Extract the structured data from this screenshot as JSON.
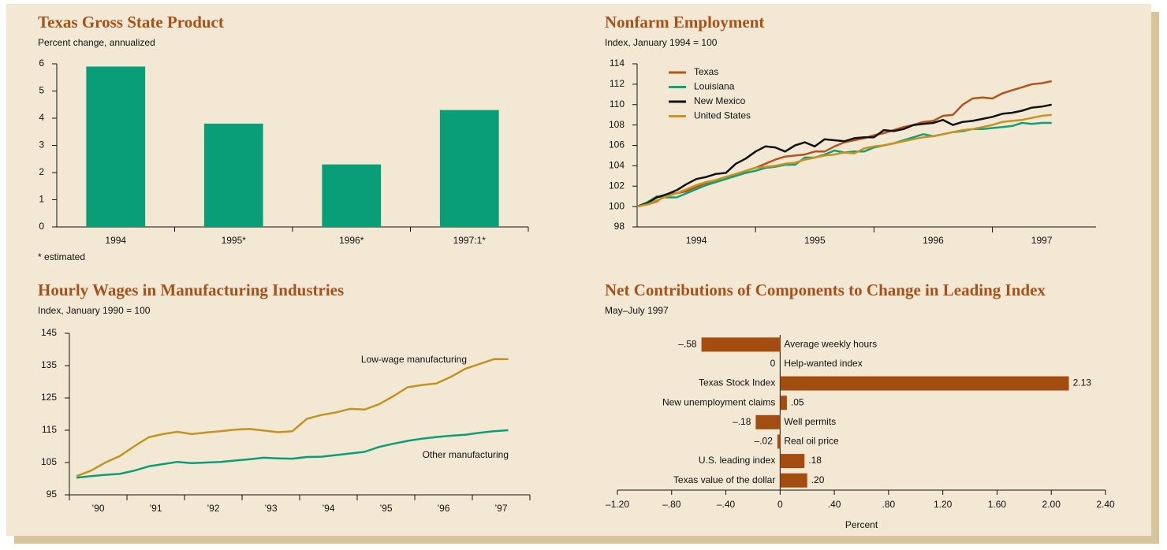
{
  "chart_data": [
    {
      "type": "bar",
      "title": "Texas Gross State Product",
      "subtitle": "Percent change, annualized",
      "categories": [
        "1994",
        "1995*",
        "1996*",
        "1997:1*"
      ],
      "values": [
        5.9,
        3.8,
        2.3,
        4.3
      ],
      "color": "#0a9e78",
      "ylim": [
        0,
        6
      ],
      "yticks": [
        0,
        1,
        2,
        3,
        4,
        5,
        6
      ],
      "note": "* estimated"
    },
    {
      "type": "line",
      "title": "Nonfarm Employment",
      "subtitle": "Index, January 1994 = 100",
      "categories": [
        null,
        null,
        null,
        null,
        null,
        null,
        "1994",
        null,
        null,
        null,
        null,
        null,
        null,
        null,
        null,
        null,
        null,
        null,
        "1995",
        null,
        null,
        null,
        null,
        null,
        null,
        null,
        null,
        null,
        null,
        null,
        "1996",
        null,
        null,
        null,
        null,
        null,
        null,
        null,
        null,
        null,
        null,
        "1997",
        null
      ],
      "series": [
        {
          "name": "Texas",
          "color": "#b3541e",
          "values": [
            100.0,
            100.2,
            100.5,
            101.2,
            101.3,
            101.5,
            101.9,
            102.3,
            102.6,
            102.9,
            103.1,
            103.5,
            103.8,
            104.2,
            104.6,
            104.9,
            105.0,
            105.1,
            105.4,
            105.4,
            105.9,
            106.3,
            106.5,
            106.7,
            107.0,
            107.2,
            107.5,
            107.8,
            108.0,
            108.3,
            108.4,
            108.9,
            109.0,
            110.0,
            110.6,
            110.7,
            110.6,
            111.1,
            111.4,
            111.7,
            112.0,
            112.1,
            112.3
          ]
        },
        {
          "name": "Louisiana",
          "color": "#12a07a",
          "values": [
            100.0,
            100.4,
            101.0,
            100.9,
            100.9,
            101.3,
            101.7,
            102.1,
            102.4,
            102.7,
            103.0,
            103.3,
            103.5,
            103.8,
            103.9,
            104.1,
            104.1,
            104.8,
            104.8,
            105.1,
            105.5,
            105.3,
            105.4,
            105.4,
            105.8,
            106.0,
            106.2,
            106.5,
            106.8,
            107.1,
            106.9,
            107.1,
            107.3,
            107.4,
            107.6,
            107.6,
            107.7,
            107.8,
            107.9,
            108.2,
            108.1,
            108.2,
            108.2
          ]
        },
        {
          "name": "New Mexico",
          "color": "#111111",
          "values": [
            100.0,
            100.3,
            100.9,
            101.2,
            101.6,
            102.2,
            102.7,
            102.9,
            103.2,
            103.3,
            104.2,
            104.7,
            105.4,
            105.9,
            105.8,
            105.4,
            106.0,
            106.3,
            105.9,
            106.6,
            106.5,
            106.4,
            106.7,
            106.8,
            106.8,
            107.5,
            107.4,
            107.6,
            108.0,
            108.1,
            108.2,
            108.5,
            108.0,
            108.3,
            108.4,
            108.6,
            108.8,
            109.1,
            109.2,
            109.4,
            109.7,
            109.8,
            110.0
          ]
        },
        {
          "name": "United States",
          "color": "#c8931f",
          "values": [
            100.0,
            100.2,
            100.6,
            101.0,
            101.3,
            101.7,
            102.1,
            102.4,
            102.6,
            102.9,
            103.2,
            103.5,
            103.8,
            103.9,
            104.0,
            104.2,
            104.3,
            104.6,
            104.8,
            105.0,
            105.1,
            105.3,
            105.2,
            105.7,
            105.9,
            106.0,
            106.2,
            106.4,
            106.6,
            106.8,
            106.9,
            107.1,
            107.3,
            107.5,
            107.6,
            107.8,
            108.0,
            108.3,
            108.4,
            108.5,
            108.7,
            108.9,
            109.0
          ]
        }
      ],
      "ylim": [
        98,
        114
      ],
      "yticks": [
        98,
        100,
        102,
        104,
        106,
        108,
        110,
        112,
        114
      ],
      "legend": "upper left"
    },
    {
      "type": "line",
      "title": "Hourly Wages in Manufacturing Industries",
      "subtitle": "Index, January 1990 = 100",
      "categories": [
        null,
        null,
        "’90",
        null,
        null,
        null,
        "’91",
        null,
        null,
        null,
        "’92",
        null,
        null,
        null,
        "’93",
        null,
        null,
        null,
        "’94",
        null,
        null,
        null,
        "’95",
        null,
        null,
        null,
        "’96",
        null,
        null,
        null,
        "’97"
      ],
      "series": [
        {
          "name": "Low-wage manufacturing",
          "color": "#c39322",
          "values": [
            100.8,
            102.5,
            105.0,
            107.0,
            110.0,
            112.8,
            113.8,
            114.5,
            113.8,
            114.3,
            114.7,
            115.2,
            115.4,
            114.9,
            114.4,
            114.7,
            118.5,
            119.7,
            120.5,
            121.6,
            121.4,
            123.0,
            125.5,
            128.3,
            129.0,
            129.5,
            131.5,
            134.0,
            135.5,
            137.0,
            137.0
          ]
        },
        {
          "name": "Other manufacturing",
          "color": "#0a9e78",
          "values": [
            100.3,
            100.8,
            101.2,
            101.5,
            102.5,
            103.8,
            104.5,
            105.2,
            104.8,
            105.0,
            105.2,
            105.6,
            106.0,
            106.5,
            106.3,
            106.2,
            106.7,
            106.8,
            107.3,
            107.8,
            108.3,
            109.8,
            110.8,
            111.7,
            112.4,
            112.9,
            113.3,
            113.6,
            114.2,
            114.7,
            115.0
          ]
        }
      ],
      "ylim": [
        95,
        145
      ],
      "yticks": [
        95,
        105,
        115,
        125,
        135,
        145
      ],
      "legend": "inline"
    },
    {
      "type": "hbar",
      "title": "Net Contributions of Components to Change in Leading Index",
      "subtitle": "May–July 1997",
      "categories": [
        "Average weekly hours",
        "Help-wanted index",
        "Texas Stock Index",
        "New unemployment claims",
        "Well permits",
        "Real oil price",
        "U.S. leading index",
        "Texas value of the dollar"
      ],
      "values": [
        -0.58,
        0,
        2.13,
        0.05,
        -0.18,
        -0.02,
        0.18,
        0.2
      ],
      "value_labels": [
        "–.58",
        "0",
        "2.13",
        ".05",
        "–.18",
        "–.02",
        ".18",
        ".20"
      ],
      "color": "#a34e10",
      "xlabel": "Percent",
      "xlim": [
        -1.2,
        2.4
      ],
      "xticks": [
        {
          "value": -1.2,
          "label": "–1.20"
        },
        {
          "value": -0.8,
          "label": "–.80"
        },
        {
          "value": -0.4,
          "label": "–.40"
        },
        0,
        {
          "value": 0.4,
          "label": ".40"
        },
        {
          "value": 0.8,
          "label": ".80"
        },
        {
          "value": 1.2,
          "label": "1.20"
        },
        {
          "value": 1.6,
          "label": "1.60"
        },
        {
          "value": 2.0,
          "label": "2.00"
        },
        {
          "value": 2.4,
          "label": "2.40"
        }
      ]
    }
  ]
}
